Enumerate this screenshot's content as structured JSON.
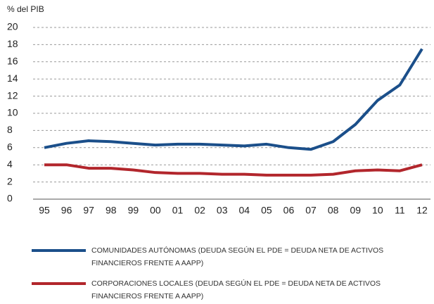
{
  "chart_data": {
    "type": "line",
    "ylabel": "% del PIB",
    "categories": [
      "95",
      "96",
      "97",
      "98",
      "99",
      "00",
      "01",
      "02",
      "03",
      "04",
      "05",
      "06",
      "07",
      "08",
      "09",
      "10",
      "11",
      "12"
    ],
    "series": [
      {
        "name": "COMUNIDADES AUTÓNOMAS (DEUDA SEGÚN EL PDE = DEUDA NETA DE ACTIVOS FINANCIEROS FRENTE A AAPP)",
        "color": "#1b4f8a",
        "values": [
          6.0,
          6.5,
          6.8,
          6.7,
          6.5,
          6.3,
          6.4,
          6.4,
          6.3,
          6.2,
          6.4,
          6.0,
          5.8,
          6.7,
          8.7,
          11.5,
          13.3,
          17.5
        ]
      },
      {
        "name": "CORPORACIONES LOCALES (DEUDA SEGÚN EL PDE = DEUDA NETA DE ACTIVOS FINANCIEROS FRENTE A AAPP)",
        "color": "#b2262c",
        "values": [
          4.0,
          4.0,
          3.6,
          3.6,
          3.4,
          3.1,
          3.0,
          3.0,
          2.9,
          2.9,
          2.8,
          2.8,
          2.8,
          2.9,
          3.3,
          3.4,
          3.3,
          4.0
        ]
      }
    ],
    "ylim": [
      0,
      20
    ],
    "yticks": [
      0,
      2,
      4,
      6,
      8,
      10,
      12,
      14,
      16,
      18,
      20
    ],
    "grid": true
  }
}
